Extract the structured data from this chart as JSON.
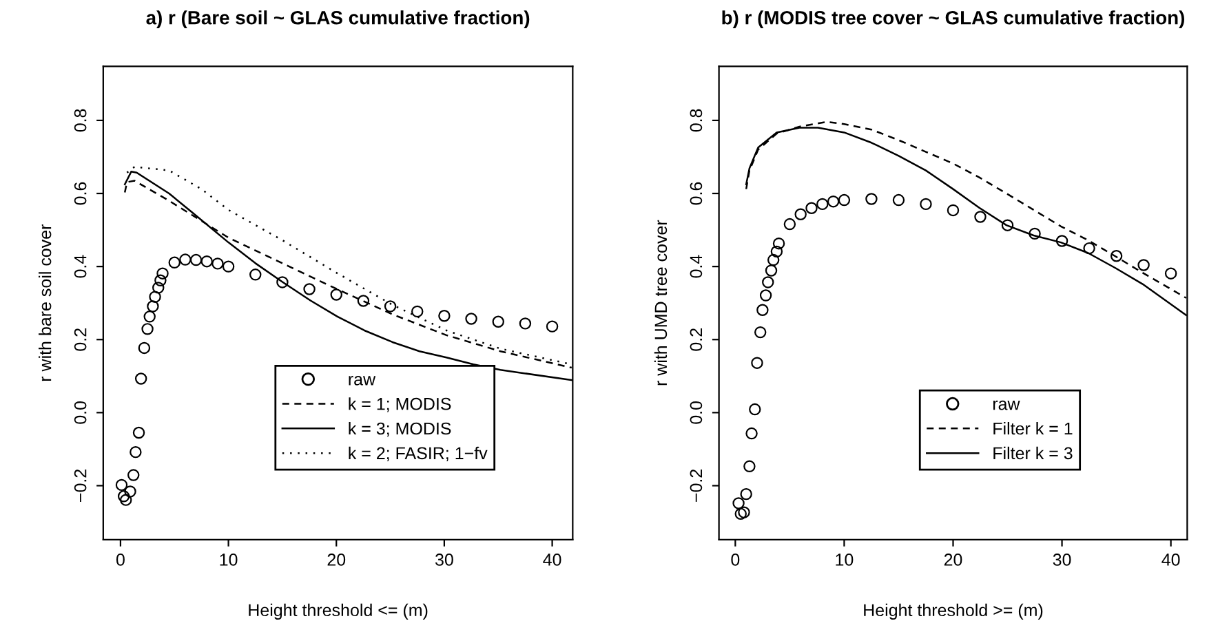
{
  "chart_data": [
    {
      "type": "line",
      "title": "a) r (Bare soil ~ GLAS cumulative fraction)",
      "xlabel": "Height threshold <= (m)",
      "ylabel": "r with bare soil cover",
      "xlim": [
        -1.6,
        41.9
      ],
      "ylim": [
        -0.348,
        0.948
      ],
      "xticks": [
        0,
        10,
        20,
        30,
        40
      ],
      "yticks": [
        {
          "value": -0.2,
          "label": "−0.2"
        },
        {
          "value": 0,
          "label": "0.0"
        },
        {
          "value": 0.2,
          "label": "0.2"
        },
        {
          "value": 0.4,
          "label": "0.4"
        },
        {
          "value": 0.6,
          "label": "0.6"
        },
        {
          "value": 0.8,
          "label": "0.8"
        }
      ],
      "grid": false,
      "legend": "bottom",
      "series": [
        {
          "name": "raw",
          "type": "scatter",
          "marker": "circle",
          "color": "#000000",
          "x": [
            0.1,
            0.3,
            0.5,
            0.9,
            1.2,
            1.4,
            1.7,
            1.9,
            2.2,
            2.5,
            2.7,
            3.0,
            3.2,
            3.5,
            3.7,
            3.9,
            5,
            6,
            7,
            8,
            9,
            10,
            12.5,
            15,
            17.5,
            20,
            22.5,
            25,
            27.5,
            30,
            32.5,
            35,
            37.5,
            40
          ],
          "values": [
            -0.198,
            -0.229,
            -0.239,
            -0.216,
            -0.171,
            -0.108,
            -0.055,
            0.093,
            0.177,
            0.229,
            0.263,
            0.291,
            0.317,
            0.342,
            0.362,
            0.381,
            0.411,
            0.419,
            0.418,
            0.414,
            0.408,
            0.4,
            0.378,
            0.357,
            0.338,
            0.323,
            0.306,
            0.291,
            0.277,
            0.265,
            0.257,
            0.249,
            0.244,
            0.236
          ]
        },
        {
          "name": "k = 1; MODIS",
          "line_style": "dashed",
          "color": "#000000",
          "x": [
            0.4,
            0.6,
            1.3,
            4.5,
            10,
            15,
            20,
            25.2,
            30.2,
            35.2,
            41.8
          ],
          "values": [
            0.603,
            0.631,
            0.635,
            0.58,
            0.479,
            0.409,
            0.339,
            0.269,
            0.212,
            0.168,
            0.123
          ]
        },
        {
          "name": "k = 3; MODIS",
          "line_style": "solid",
          "color": "#000000",
          "x": [
            0.4,
            1.0,
            1.5,
            4.5,
            6.6,
            10,
            12.5,
            15,
            17.6,
            20.1,
            22.6,
            25.2,
            27.7,
            30.2,
            32.7,
            35.2,
            41.8
          ],
          "values": [
            0.625,
            0.66,
            0.657,
            0.6,
            0.549,
            0.466,
            0.409,
            0.358,
            0.307,
            0.263,
            0.225,
            0.193,
            0.168,
            0.151,
            0.132,
            0.117,
            0.089
          ]
        },
        {
          "name": "k = 2; FASIR; 1−fv",
          "line_style": "dotted",
          "color": "#000000",
          "x": [
            0.6,
            1.3,
            4.5,
            7.5,
            10,
            15,
            20,
            25.2,
            30.2,
            35.2,
            41.8
          ],
          "values": [
            0.657,
            0.673,
            0.663,
            0.612,
            0.555,
            0.472,
            0.383,
            0.295,
            0.225,
            0.175,
            0.132
          ]
        }
      ]
    },
    {
      "type": "line",
      "title": "b) r (MODIS tree cover ~ GLAS cumulative fraction)",
      "xlabel": "Height threshold >= (m)",
      "ylabel": "r with UMD tree cover",
      "xlim": [
        -1.5,
        41.5
      ],
      "ylim": [
        -0.348,
        0.948
      ],
      "xticks": [
        0,
        10,
        20,
        30,
        40
      ],
      "yticks": [
        {
          "value": -0.2,
          "label": "−0.2"
        },
        {
          "value": 0,
          "label": "0.0"
        },
        {
          "value": 0.2,
          "label": "0.2"
        },
        {
          "value": 0.4,
          "label": "0.4"
        },
        {
          "value": 0.6,
          "label": "0.6"
        },
        {
          "value": 0.8,
          "label": "0.8"
        }
      ],
      "grid": false,
      "legend": "bottom",
      "series": [
        {
          "name": "raw",
          "type": "scatter",
          "marker": "circle",
          "color": "#000000",
          "x": [
            0.3,
            0.5,
            0.8,
            1.0,
            1.3,
            1.5,
            1.8,
            2.0,
            2.3,
            2.5,
            2.8,
            3.0,
            3.3,
            3.5,
            3.8,
            4.0,
            5,
            6,
            7,
            8,
            9,
            10,
            12.5,
            15,
            17.5,
            20,
            22.5,
            25,
            27.5,
            30,
            32.5,
            35,
            37.5,
            40
          ],
          "values": [
            -0.248,
            -0.277,
            -0.273,
            -0.223,
            -0.147,
            -0.057,
            0.009,
            0.136,
            0.22,
            0.281,
            0.321,
            0.357,
            0.389,
            0.418,
            0.441,
            0.463,
            0.516,
            0.543,
            0.56,
            0.571,
            0.578,
            0.582,
            0.585,
            0.582,
            0.571,
            0.554,
            0.536,
            0.513,
            0.49,
            0.47,
            0.45,
            0.429,
            0.404,
            0.381
          ]
        },
        {
          "name": "Filter k = 1",
          "line_style": "dashed",
          "color": "#000000",
          "x": [
            1.0,
            1.3,
            2.1,
            3.8,
            5.9,
            8.4,
            10,
            12.5,
            15,
            17.5,
            20,
            22.4,
            24.9,
            27.4,
            29.9,
            32.4,
            34.9,
            37.4,
            41.4
          ],
          "values": [
            0.612,
            0.663,
            0.72,
            0.764,
            0.783,
            0.796,
            0.79,
            0.775,
            0.746,
            0.714,
            0.682,
            0.644,
            0.6,
            0.555,
            0.51,
            0.472,
            0.428,
            0.383,
            0.314
          ]
        },
        {
          "name": "Filter k = 3",
          "line_style": "solid",
          "color": "#000000",
          "x": [
            1.0,
            1.3,
            2.1,
            3.8,
            5.9,
            7.6,
            10,
            12.5,
            15,
            17.5,
            20,
            22.4,
            24.9,
            27.4,
            29.9,
            32.4,
            34.9,
            37.4,
            41.4
          ],
          "values": [
            0.625,
            0.669,
            0.726,
            0.767,
            0.78,
            0.78,
            0.767,
            0.739,
            0.703,
            0.663,
            0.612,
            0.561,
            0.513,
            0.485,
            0.466,
            0.437,
            0.396,
            0.352,
            0.267
          ]
        }
      ]
    }
  ]
}
